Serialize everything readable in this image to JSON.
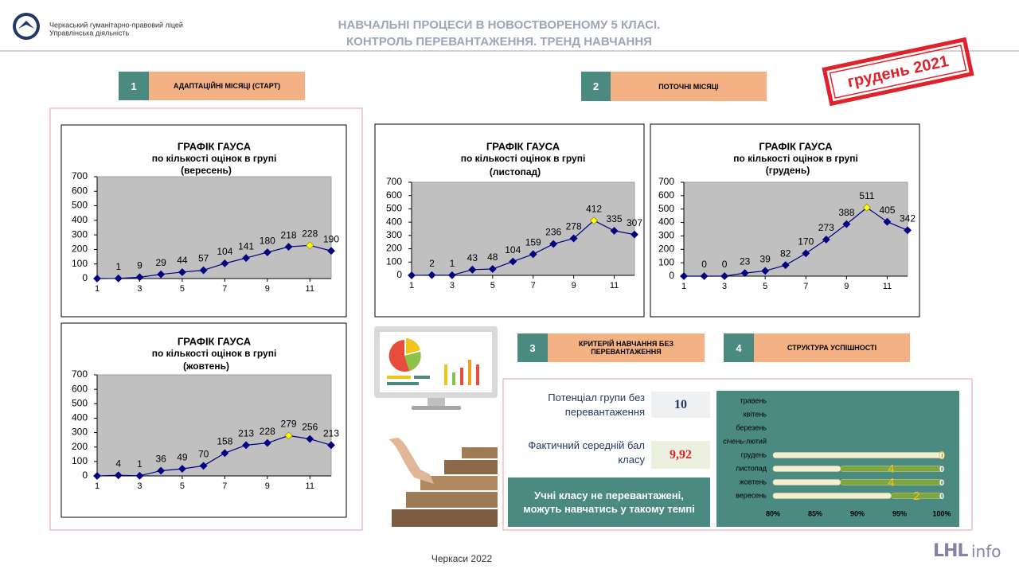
{
  "header": {
    "org_line1": "Черкаський гуманітарно-правовий ліцей",
    "org_line2": "Управлінська діяльність",
    "title_line1": "НАВЧАЛЬНІ ПРОЦЕСИ В НОВОСТВОРЕНОМУ 5 КЛАСІ.",
    "title_line2": "КОНТРОЛЬ ПЕРЕВАНТАЖЕННЯ. ТРЕНД НАВЧАННЯ",
    "stamp": "грудень 2021"
  },
  "sections": [
    {
      "number": 1,
      "label": "АДАПТАЦІЙНІ МІСЯЦІ (СТАРТ)"
    },
    {
      "number": 2,
      "label": "ПОТОЧНІ МІСЯЦІ"
    },
    {
      "number": 3,
      "label": "КРИТЕРІЙ НАВЧАННЯ БЕЗ ПЕРЕВАНТАЖЕННЯ"
    },
    {
      "number": 4,
      "label": "СТРУКТУРА УСПІШНОСТІ"
    }
  ],
  "criterion": {
    "potential_label": "Потенціал групи без перевантаження",
    "potential_value": 10,
    "actual_label": "Фактичний середній бал класу",
    "actual_value": 9.92,
    "actual_value_label": "9,92",
    "conclusion": "Учні класу не перевантажені, можуть навчатись у такому темпі"
  },
  "footer": {
    "city": "Черкаси 2022",
    "logo_main": "LHL",
    "logo_sub": "info"
  },
  "chart_data": [
    {
      "type": "line",
      "title": "ГРАФІК ГАУСА",
      "subtitle": "по кількості оцінок в групі",
      "period": "(вересень)",
      "x": [
        1,
        2,
        3,
        4,
        5,
        6,
        7,
        8,
        9,
        10,
        11,
        12
      ],
      "values": [
        0,
        1,
        9,
        29,
        44,
        57,
        104,
        141,
        180,
        218,
        228,
        190
      ],
      "value_labels": [
        null,
        "1",
        "9",
        "29",
        "44",
        "57",
        "104",
        "141",
        "180",
        "218",
        "228",
        "190"
      ],
      "xlim": [
        1,
        12
      ],
      "xticks": [
        1,
        3,
        5,
        7,
        9,
        11
      ],
      "ylim": [
        0,
        700
      ],
      "yticks": [
        0,
        100,
        200,
        300,
        400,
        500,
        600,
        700
      ],
      "color": "#000080",
      "highlight": 10,
      "highlight_color": "#ffff00"
    },
    {
      "type": "line",
      "title": "ГРАФІК ГАУСА",
      "subtitle": "по кількості оцінок в групі",
      "period": "(жовтень)",
      "x": [
        1,
        2,
        3,
        4,
        5,
        6,
        7,
        8,
        9,
        10,
        11,
        12
      ],
      "values": [
        0,
        4,
        1,
        36,
        49,
        70,
        158,
        213,
        228,
        279,
        256,
        213
      ],
      "value_labels": [
        null,
        "4",
        "1",
        "36",
        "49",
        "70",
        "158",
        "213",
        "228",
        "279",
        "256",
        "213"
      ],
      "xlim": [
        1,
        12
      ],
      "xticks": [
        1,
        3,
        5,
        7,
        9,
        11
      ],
      "ylim": [
        0,
        700
      ],
      "yticks": [
        0,
        100,
        200,
        300,
        400,
        500,
        600,
        700
      ],
      "color": "#000080",
      "highlight": 9,
      "highlight_color": "#ffff00"
    },
    {
      "type": "line",
      "title": "ГРАФІК ГАУСА",
      "subtitle": "по кількості оцінок в групі",
      "period": "(листопад)",
      "x": [
        1,
        2,
        3,
        4,
        5,
        6,
        7,
        8,
        9,
        10,
        11,
        12
      ],
      "values": [
        0,
        2,
        1,
        43,
        48,
        104,
        159,
        236,
        278,
        412,
        335,
        307
      ],
      "value_labels": [
        null,
        "2",
        "1",
        "43",
        "48",
        "104",
        "159",
        "236",
        "278",
        "412",
        "335",
        "307"
      ],
      "xlim": [
        1,
        12
      ],
      "xticks": [
        1,
        3,
        5,
        7,
        9,
        11
      ],
      "ylim": [
        0,
        700
      ],
      "yticks": [
        0,
        100,
        200,
        300,
        400,
        500,
        600,
        700
      ],
      "color": "#000080",
      "highlight": 9,
      "highlight_color": "#ffff00"
    },
    {
      "type": "line",
      "title": "ГРАФІК ГАУСА",
      "subtitle": "по кількості оцінок в групі",
      "period": "(грудень)",
      "x": [
        1,
        2,
        3,
        4,
        5,
        6,
        7,
        8,
        9,
        10,
        11,
        12
      ],
      "values": [
        0,
        0,
        0,
        23,
        39,
        82,
        170,
        273,
        388,
        511,
        405,
        342
      ],
      "value_labels": [
        null,
        "0",
        "0",
        "23",
        "39",
        "82",
        "170",
        "273",
        "388",
        "511",
        "405",
        "342"
      ],
      "xlim": [
        1,
        12
      ],
      "xticks": [
        1,
        3,
        5,
        7,
        9,
        11
      ],
      "ylim": [
        0,
        700
      ],
      "yticks": [
        0,
        100,
        200,
        300,
        400,
        500,
        600,
        700
      ],
      "color": "#000080",
      "highlight": 9,
      "highlight_color": "#ffff00"
    },
    {
      "type": "hbar",
      "categories": [
        "травень",
        "квітень",
        "березень",
        "січень-лютий",
        "грудень",
        "листопад",
        "жовтень",
        "вересень"
      ],
      "series": [
        {
          "color": "#f3efcf",
          "values": [
            null,
            null,
            null,
            null,
            100,
            88,
            88,
            94
          ]
        },
        {
          "color": "#7fa63a",
          "values": [
            null,
            null,
            null,
            null,
            0,
            12,
            12,
            6
          ]
        }
      ],
      "data_labels": [
        [
          null,
          null,
          null,
          null,
          0,
          4,
          4,
          2
        ],
        [
          null,
          null,
          null,
          null,
          0,
          0,
          0,
          0
        ]
      ],
      "label_colors": [
        "#f0c419",
        "#ffffff"
      ],
      "xlim": [
        80,
        100
      ],
      "xticks": [
        {
          "value": 80,
          "label": "80%"
        },
        {
          "value": 85,
          "label": "85%"
        },
        {
          "value": 90,
          "label": "90%"
        },
        {
          "value": 95,
          "label": "95%"
        },
        {
          "value": 100,
          "label": "100%"
        }
      ],
      "background": "#4a8a80"
    }
  ]
}
